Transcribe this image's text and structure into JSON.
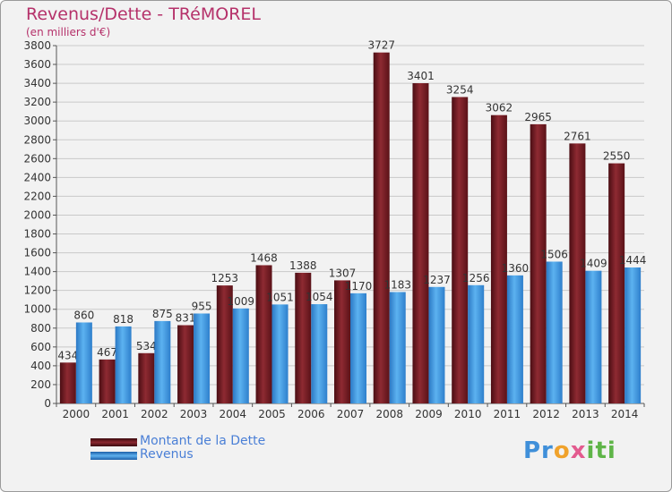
{
  "chart_data": {
    "type": "bar",
    "title": "Revenus/Dette - TRéMOREL",
    "subtitle": "(en milliers d'€)",
    "categories": [
      "2000",
      "2001",
      "2002",
      "2003",
      "2004",
      "2005",
      "2006",
      "2007",
      "2008",
      "2009",
      "2010",
      "2011",
      "2012",
      "2013",
      "2014"
    ],
    "series": [
      {
        "name": "Montant de la Dette",
        "color": "#7a1c24",
        "values": [
          434,
          467,
          534,
          831,
          1253,
          1468,
          1388,
          1307,
          3727,
          3401,
          3254,
          3062,
          2965,
          2761,
          2550
        ]
      },
      {
        "name": "Revenus",
        "color": "#3d97e0",
        "values": [
          860,
          818,
          875,
          955,
          1009,
          1051,
          1054,
          1170,
          1183,
          1237,
          1256,
          1360,
          1506,
          1409,
          1444
        ]
      }
    ],
    "ylim": [
      0,
      3800
    ],
    "ytick_step": 200,
    "grid": true,
    "legend_position": "bottom-left",
    "value_labels": true
  },
  "logo": {
    "p": "Pr",
    "o": "o",
    "x": "x",
    "iti": "iti"
  }
}
